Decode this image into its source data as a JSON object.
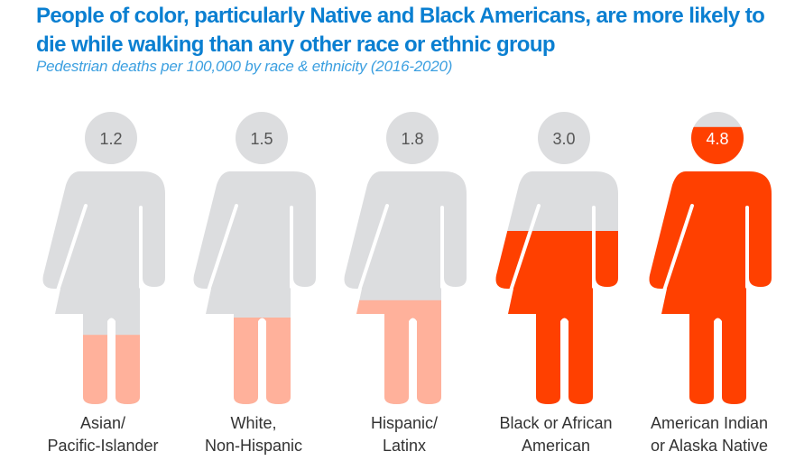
{
  "header": {
    "title": "People of color, particularly Native and Black Americans, are more likely to die while walking than any other race or ethnic group",
    "subtitle": "Pedestrian deaths per 100,000 by race & ethnicity (2016-2020)"
  },
  "chart_data": {
    "type": "bar",
    "style": "pictogram fill (human figure filled from bottom proportional to value)",
    "title": "People of color, particularly Native and Black Americans, are more likely to die while walking than any other race or ethnic group",
    "subtitle": "Pedestrian deaths per 100,000 by race & ethnicity (2016-2020)",
    "ylim": [
      0,
      5
    ],
    "grid": false,
    "background_color": "#dcdddf",
    "categories": [
      {
        "label_line1": "Asian/",
        "label_line2": "Pacific-Islander",
        "value": 1.2,
        "value_label": "1.2",
        "color": "#ffb19b",
        "value_text_color": "#555555"
      },
      {
        "label_line1": "White,",
        "label_line2": "Non-Hispanic",
        "value": 1.5,
        "value_label": "1.5",
        "color": "#ffb19b",
        "value_text_color": "#555555"
      },
      {
        "label_line1": "Hispanic/",
        "label_line2": "Latinx",
        "value": 1.8,
        "value_label": "1.8",
        "color": "#ffb19b",
        "value_text_color": "#555555"
      },
      {
        "label_line1": "Black or African",
        "label_line2": "American",
        "value": 3.0,
        "value_label": "3.0",
        "color": "#ff4000",
        "value_text_color": "#555555"
      },
      {
        "label_line1": "American Indian",
        "label_line2": "or Alaska Native",
        "value": 4.8,
        "value_label": "4.8",
        "color": "#ff4000",
        "value_text_color": "#ffffff"
      }
    ]
  }
}
